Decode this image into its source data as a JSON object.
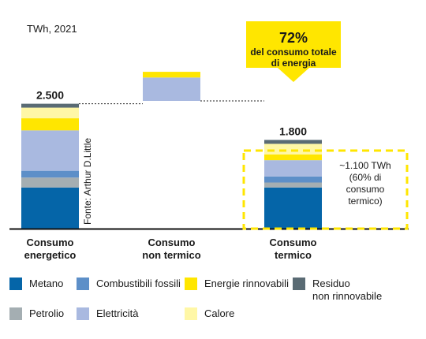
{
  "chart_data": {
    "type": "bar",
    "subtype": "stacked-waterfall",
    "unit_label": "TWh, 2021",
    "source_label": "Fonte: Arthur D.Little",
    "categories": [
      "Consumo\nenergetico",
      "Consumo\nnon termico",
      "Consumo\ntermico"
    ],
    "totals": [
      2500,
      700,
      1800
    ],
    "total_labels": [
      "2.500",
      "",
      "1.800"
    ],
    "ylim": [
      0,
      2500
    ],
    "series": [
      {
        "name": "Metano",
        "color": "#0565a8",
        "values": [
          580,
          0,
          580
        ]
      },
      {
        "name": "Petrolio",
        "color": "#a4aeb2",
        "values": [
          140,
          0,
          70
        ]
      },
      {
        "name": "Combustibili fossili",
        "color": "#5d8fc8",
        "values": [
          95,
          0,
          85
        ]
      },
      {
        "name": "Elettricità",
        "color": "#a9b9e0",
        "values": [
          570,
          330,
          230
        ]
      },
      {
        "name": "Energie rinnovabili",
        "color": "#ffe600",
        "values": [
          170,
          80,
          80
        ]
      },
      {
        "name": "Calore",
        "color": "#fff7a6",
        "values": [
          150,
          0,
          150
        ]
      },
      {
        "name": "Residuo\nnon rinnovabile",
        "color": "#5a6b74",
        "values": [
          55,
          0,
          55
        ]
      }
    ],
    "callout": {
      "percent": "72%",
      "text": "del consumo totale\ndi energia"
    },
    "highlight": {
      "label": "~1.100 TWh\n(60% di\nconsumo\ntermico)",
      "value": 1100
    }
  },
  "legend_order": [
    0,
    2,
    4,
    6,
    1,
    3,
    5
  ]
}
